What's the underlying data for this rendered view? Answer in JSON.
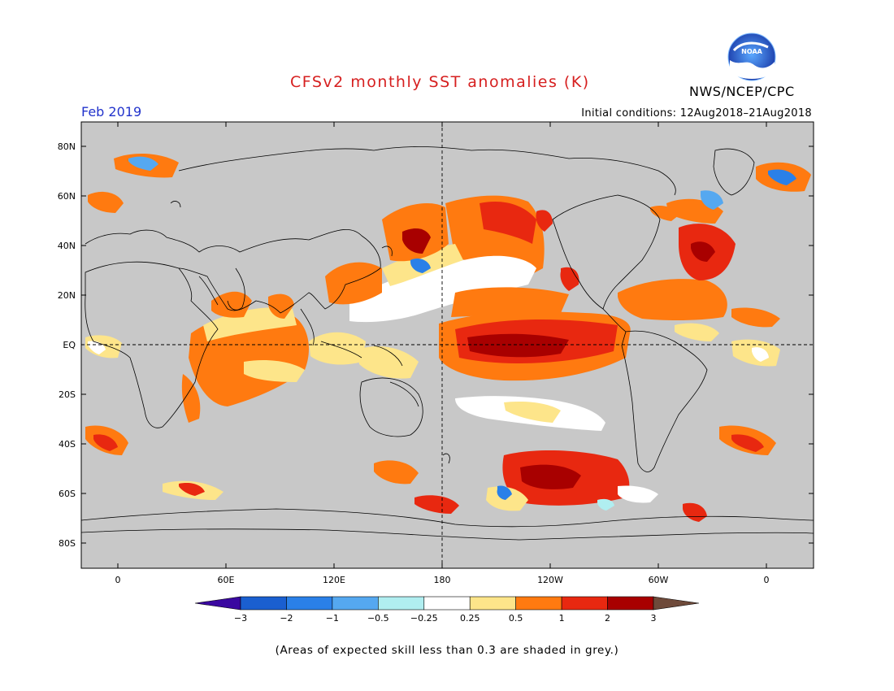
{
  "header": {
    "title": "CFSv2 monthly SST anomalies (K)",
    "agency": "NWS/NCEP/CPC",
    "logo_text": "NOAA",
    "valid_month": "Feb 2019",
    "initial_conditions": "Initial conditions: 12Aug2018–21Aug2018"
  },
  "map": {
    "projection": "equirectangular",
    "lon_range": [
      -20,
      380
    ],
    "lat_range": [
      -90,
      90
    ],
    "land_color": "#c8c8c8",
    "lat_ticks": [
      "80N",
      "60N",
      "40N",
      "20N",
      "EQ",
      "20S",
      "40S",
      "60S",
      "80S"
    ],
    "lon_ticks": [
      "0",
      "60E",
      "120E",
      "180",
      "120W",
      "60W",
      "0"
    ],
    "reference_lines": [
      "equator",
      "dateline"
    ]
  },
  "colorbar": {
    "labels": [
      "−3",
      "−2",
      "−1",
      "−0.5",
      "−0.25",
      "0.25",
      "0.5",
      "1",
      "2",
      "3"
    ],
    "colors": [
      "#3a08a0",
      "#1a5fd0",
      "#2a80e8",
      "#55a8f0",
      "#b0eef0",
      "#ffffff",
      "#fde58a",
      "#ff7a10",
      "#e82810",
      "#a80000",
      "#6e4a3a"
    ]
  },
  "footnote": "(Areas of expected skill less than 0.3 are shaded in grey.)"
}
